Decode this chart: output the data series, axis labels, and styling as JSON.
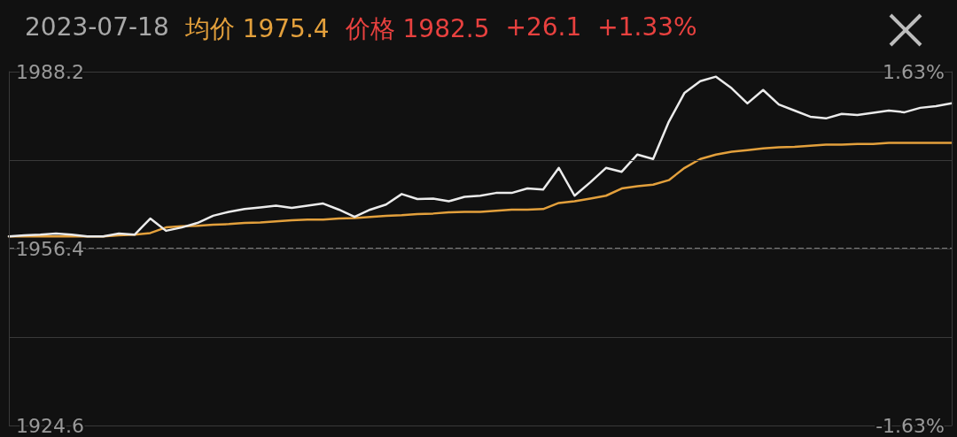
{
  "chart_data": {
    "type": "line",
    "title": "2023-07-18",
    "annotations": [
      "均价 1975.4",
      "价格 1982.5",
      "+26.1",
      "+1.33%"
    ],
    "categories": [
      null,
      null,
      null,
      null,
      null,
      null,
      null,
      null,
      null,
      null,
      null,
      null,
      null,
      null,
      null,
      null,
      null,
      null,
      null,
      null,
      null,
      null,
      null,
      null,
      null,
      null,
      null,
      null,
      null,
      null,
      null,
      null,
      null,
      null,
      null,
      null,
      null,
      null,
      null,
      null,
      null,
      null,
      null,
      null,
      null,
      null,
      null,
      null,
      null,
      null,
      null,
      null,
      null,
      null,
      null,
      null,
      null,
      null,
      null,
      null,
      null
    ],
    "series": [
      {
        "color": "#ebebeb",
        "values": [
          1958.6,
          1958.8,
          1958.9,
          1959.1,
          1958.9,
          1958.6,
          1958.6,
          1959.1,
          1958.9,
          1961.8,
          1959.6,
          1960.2,
          1961.0,
          1962.3,
          1963.0,
          1963.5,
          1963.8,
          1964.1,
          1963.7,
          1964.1,
          1964.5,
          1963.4,
          1962.1,
          1963.4,
          1964.3,
          1966.2,
          1965.3,
          1965.4,
          1964.9,
          1965.7,
          1965.9,
          1966.4,
          1966.4,
          1967.2,
          1967.0,
          1970.9,
          1965.9,
          1968.3,
          1970.9,
          1970.2,
          1973.3,
          1972.5,
          1979.2,
          1984.4,
          1986.5,
          1987.3,
          1985.2,
          1982.5,
          1984.9,
          1982.3,
          1981.2,
          1980.1,
          1979.8,
          1980.6,
          1980.4,
          1980.8,
          1981.2,
          1980.9,
          1981.7,
          1982.0,
          1982.5
        ]
      },
      {
        "color": "#e3a03c",
        "values": [
          1958.6,
          1958.6,
          1958.6,
          1958.6,
          1958.6,
          1958.6,
          1958.6,
          1958.8,
          1958.9,
          1959.2,
          1960.2,
          1960.4,
          1960.5,
          1960.7,
          1960.8,
          1961.0,
          1961.1,
          1961.3,
          1961.5,
          1961.6,
          1961.6,
          1961.8,
          1961.9,
          1962.1,
          1962.3,
          1962.4,
          1962.6,
          1962.7,
          1962.9,
          1963.0,
          1963.0,
          1963.2,
          1963.4,
          1963.4,
          1963.5,
          1964.6,
          1964.9,
          1965.4,
          1965.9,
          1967.2,
          1967.6,
          1967.9,
          1968.7,
          1970.9,
          1972.5,
          1973.3,
          1973.8,
          1974.1,
          1974.4,
          1974.6,
          1974.7,
          1974.9,
          1975.1,
          1975.1,
          1975.2,
          1975.2,
          1975.4,
          1975.4,
          1975.4,
          1975.4,
          1975.4
        ]
      }
    ],
    "ylim": [
      1924.6,
      1988.2
    ],
    "yticks": [
      1924.6,
      {
        "value": 1940.5,
        "label": null
      },
      1956.4,
      {
        "value": 1972.3,
        "label": null
      },
      1988.2
    ],
    "y2lim": [
      -1.63,
      1.63
    ],
    "y2ticks": [
      {
        "value": -1.63,
        "label": "-1.63%"
      },
      {
        "value": 1.63,
        "label": "1.63%"
      }
    ],
    "ref_lines": [
      {
        "axis": "y",
        "value": 1956.4,
        "color": "#9a9a9a",
        "line_style": "dashed"
      }
    ],
    "grid": "y",
    "marker": "none",
    "line_style": "solid",
    "tick_labels": "y"
  }
}
